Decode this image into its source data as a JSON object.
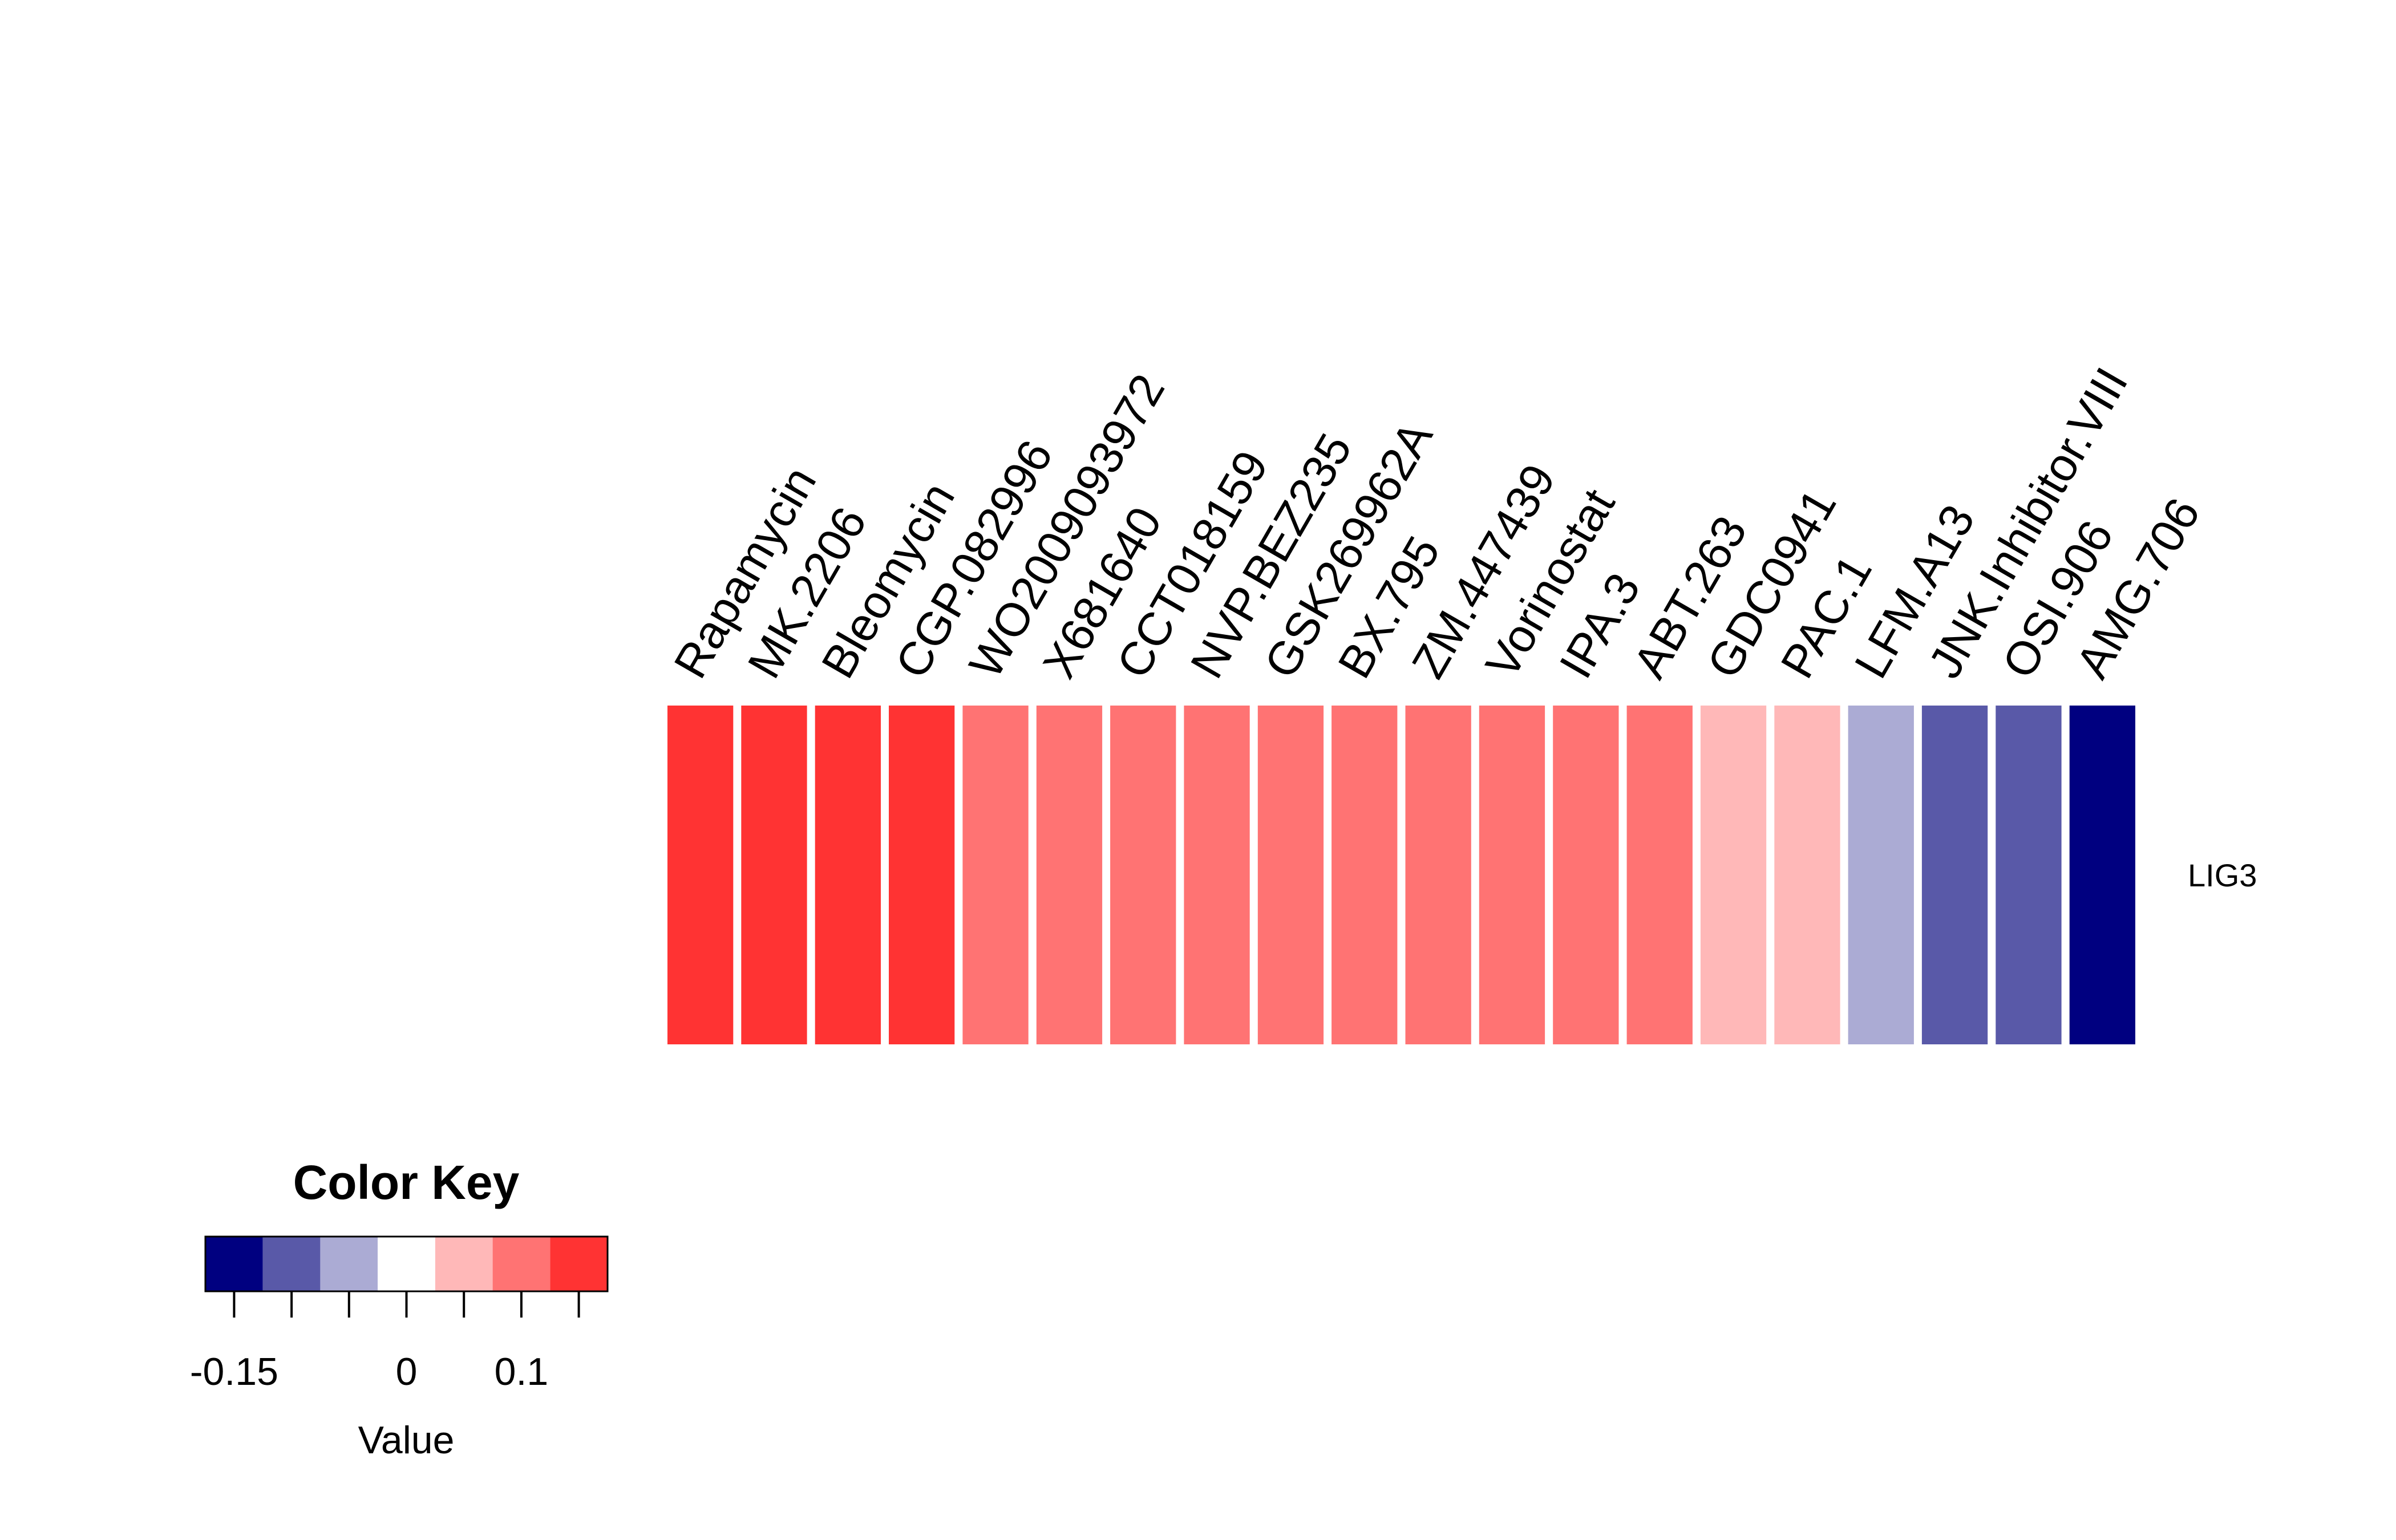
{
  "chart_data": {
    "type": "heatmap",
    "row_labels": [
      "LIG3"
    ],
    "columns": [
      "Rapamycin",
      "MK.2206",
      "Bleomycin",
      "CGP.082996",
      "WO2009093972",
      "X681640",
      "CCT018159",
      "NVP.BEZ235",
      "GSK269962A",
      "BX.795",
      "ZM.447439",
      "Vorinostat",
      "IPA.3",
      "ABT.263",
      "GDC0941",
      "PAC.1",
      "LFM.A13",
      "JNK.Inhibitor.VIII",
      "OSI.906",
      "AMG.706"
    ],
    "values": [
      [
        0.14,
        0.14,
        0.14,
        0.14,
        0.09,
        0.09,
        0.09,
        0.09,
        0.09,
        0.09,
        0.09,
        0.09,
        0.09,
        0.09,
        0.04,
        0.04,
        -0.06,
        -0.11,
        -0.11,
        -0.16
      ]
    ],
    "color_key": {
      "title": "Color Key",
      "xlabel": "Value",
      "range": [
        -0.175,
        0.175
      ],
      "breaks": [
        -0.175,
        -0.125,
        -0.075,
        -0.025,
        0.025,
        0.075,
        0.125,
        0.175
      ],
      "colors": [
        "#000080",
        "#5959A8",
        "#ABABD4",
        "#FFFFFF",
        "#FFB8B8",
        "#FF7373",
        "#FF3333"
      ],
      "tick_labels": [
        "-0.15",
        "0",
        "0.1"
      ],
      "tick_values": [
        -0.15,
        0,
        0.1
      ],
      "minor_tick_values": [
        -0.15,
        -0.1,
        -0.05,
        0,
        0.05,
        0.1,
        0.15
      ]
    }
  }
}
